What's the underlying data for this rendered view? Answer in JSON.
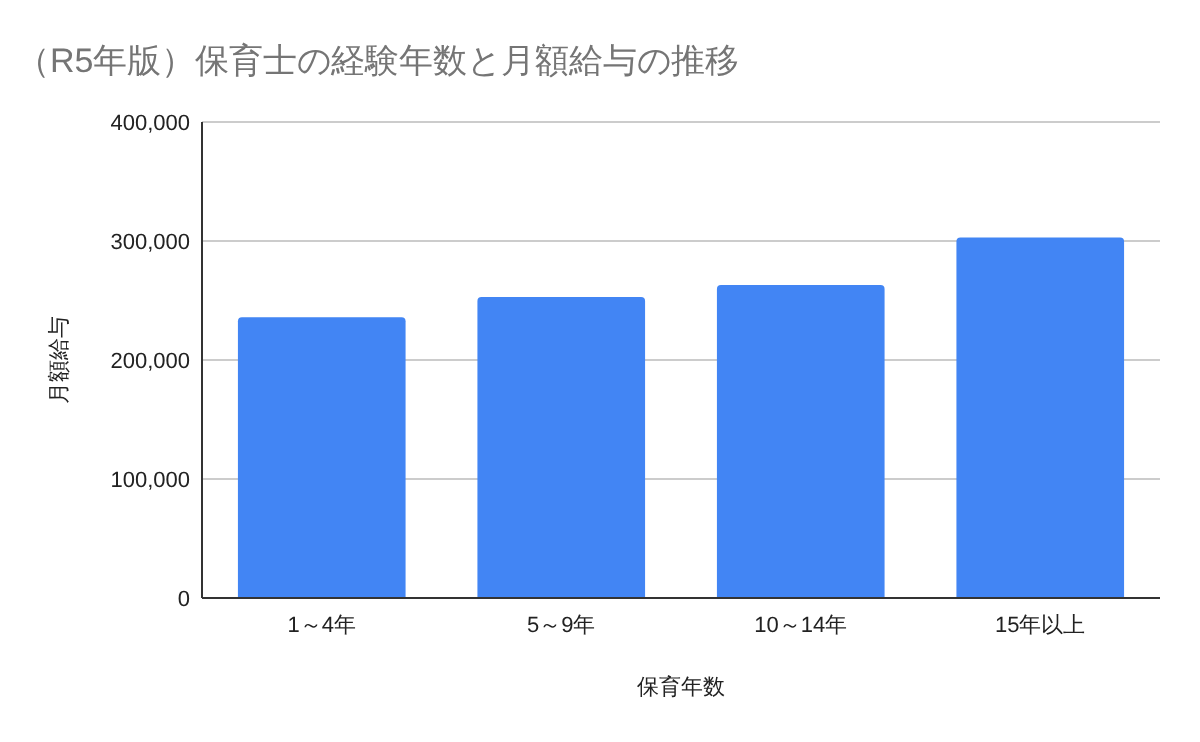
{
  "chart_data": {
    "type": "bar",
    "title": "（R5年版）保育士の経験年数と月額給与の推移",
    "xlabel": "保育年数",
    "ylabel": "月額給与",
    "categories": [
      "1～4年",
      "5～9年",
      "10～14年",
      "15年以上"
    ],
    "values": [
      236000,
      253000,
      263000,
      303000
    ],
    "color": "#4285f4",
    "ylim": [
      0,
      400000
    ],
    "yticks": [
      {
        "value": 0,
        "label": "0"
      },
      {
        "value": 100000,
        "label": "100,000"
      },
      {
        "value": 200000,
        "label": "200,000"
      },
      {
        "value": 300000,
        "label": "300,000"
      },
      {
        "value": 400000,
        "label": "400,000"
      }
    ],
    "grid": "y"
  }
}
